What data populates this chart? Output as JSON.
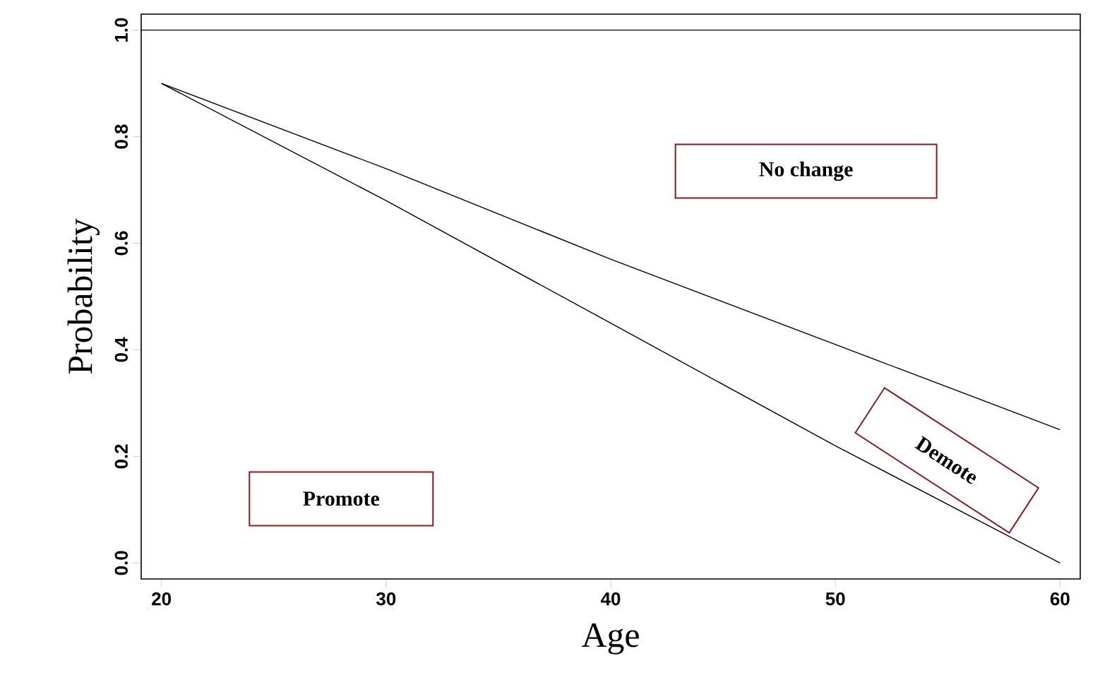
{
  "chart_data": {
    "type": "line",
    "xlabel": "Age",
    "ylabel": "Probability",
    "x": [
      20,
      30,
      40,
      50,
      60
    ],
    "series": [
      {
        "color": "#000000",
        "values": [
          0.9,
          0.68,
          0.45,
          0.22,
          0.0
        ]
      },
      {
        "color": "#000000",
        "values": [
          0.9,
          0.74,
          0.57,
          0.41,
          0.25
        ]
      }
    ],
    "xlim": [
      19.1,
      60.9
    ],
    "ylim": [
      -0.03,
      1.03
    ],
    "xticks": [
      20,
      30,
      40,
      50,
      60
    ],
    "yticks": [
      {
        "value": 0,
        "label": "0.0"
      },
      {
        "value": 0.2,
        "label": "0.2"
      },
      {
        "value": 0.4,
        "label": "0.4"
      },
      {
        "value": 0.6,
        "label": "0.6"
      },
      {
        "value": 0.8,
        "label": "0.8"
      },
      {
        "value": 1.0,
        "label": "1.0"
      }
    ],
    "ref_lines": [
      {
        "axis": "y",
        "value": 1.0,
        "color": "#000000"
      }
    ],
    "annotations": [
      "Promote",
      "No change",
      "Demote"
    ],
    "grid": false,
    "marker": "none",
    "line_style": "solid"
  }
}
